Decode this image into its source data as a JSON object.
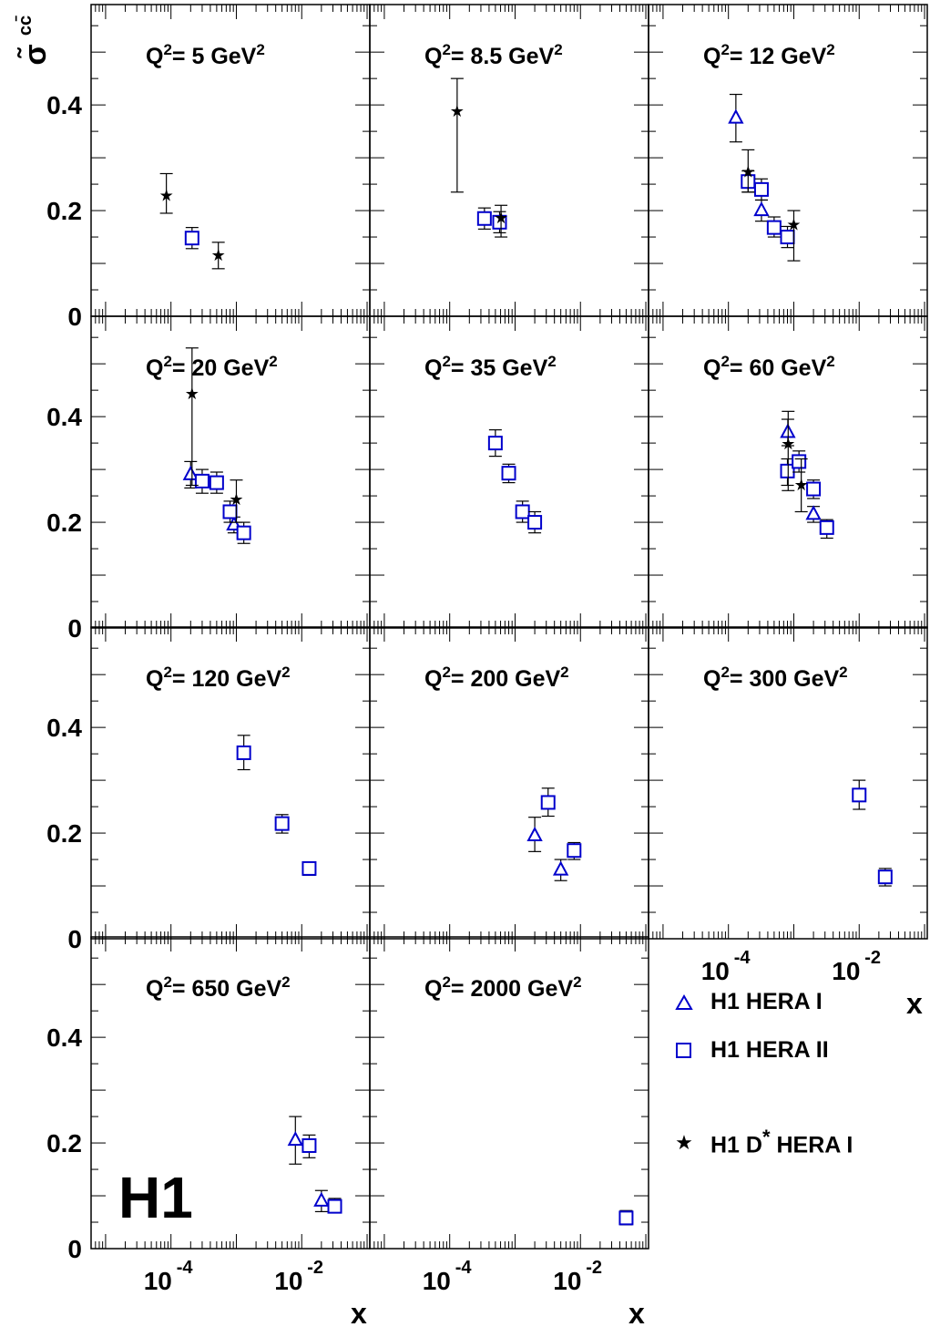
{
  "figure": {
    "y_label": "σ̃",
    "y_label_sup": "cc̄",
    "x_label": "x",
    "logo": "H1",
    "ytick_labels": [
      "0",
      "0.2",
      "0.4"
    ],
    "xtick_labels": [
      {
        "base": "10",
        "exp": "-4"
      },
      {
        "base": "10",
        "exp": "-2"
      }
    ]
  },
  "legend": {
    "items": [
      {
        "marker": "triangle",
        "label": "H1 HERA I",
        "color": "#0000cc"
      },
      {
        "marker": "square",
        "label": "H1 HERA II",
        "color": "#0000cc"
      },
      {
        "marker": "star",
        "label": "H1 D",
        "label_sup": "*",
        "label_tail": " HERA I",
        "color": "#000000"
      }
    ]
  },
  "chart_data": [
    {
      "type": "scatter",
      "title_prefix": "Q",
      "title_value": "= 5 GeV",
      "xscale": "log",
      "xlim": [
        6e-06,
        0.11
      ],
      "ylim": [
        0,
        0.59
      ],
      "grid": false,
      "series": [
        {
          "name": "H1 HERA II",
          "points": [
            {
              "x": 0.00021,
              "y": 0.148,
              "lo": 0.128,
              "hi": 0.168
            }
          ]
        },
        {
          "name": "H1 D* HERA I",
          "points": [
            {
              "x": 8.5e-05,
              "y": 0.23,
              "lo": 0.195,
              "hi": 0.27
            },
            {
              "x": 0.00053,
              "y": 0.117,
              "lo": 0.09,
              "hi": 0.14
            }
          ]
        }
      ]
    },
    {
      "type": "scatter",
      "title_prefix": "Q",
      "title_value": "= 8.5 GeV",
      "xscale": "log",
      "xlim": [
        6e-06,
        0.11
      ],
      "ylim": [
        0,
        0.59
      ],
      "grid": false,
      "series": [
        {
          "name": "H1 HERA II",
          "points": [
            {
              "x": 0.00034,
              "y": 0.185,
              "lo": 0.165,
              "hi": 0.205
            },
            {
              "x": 0.00058,
              "y": 0.178,
              "lo": 0.158,
              "hi": 0.198
            }
          ]
        },
        {
          "name": "H1 D* HERA I",
          "points": [
            {
              "x": 0.00013,
              "y": 0.39,
              "lo": 0.235,
              "hi": 0.45
            },
            {
              "x": 0.00061,
              "y": 0.188,
              "lo": 0.15,
              "hi": 0.21
            }
          ]
        }
      ]
    },
    {
      "type": "scatter",
      "title_prefix": "Q",
      "title_value": "= 12 GeV",
      "xscale": "log",
      "xlim": [
        6e-06,
        0.11
      ],
      "ylim": [
        0,
        0.59
      ],
      "grid": false,
      "series": [
        {
          "name": "H1 HERA I",
          "points": [
            {
              "x": 0.00013,
              "y": 0.375,
              "lo": 0.33,
              "hi": 0.42
            },
            {
              "x": 0.00032,
              "y": 0.2,
              "lo": 0.18,
              "hi": 0.22
            }
          ]
        },
        {
          "name": "H1 HERA II",
          "points": [
            {
              "x": 0.0002,
              "y": 0.255,
              "lo": 0.235,
              "hi": 0.275
            },
            {
              "x": 0.00032,
              "y": 0.24,
              "lo": 0.22,
              "hi": 0.26
            },
            {
              "x": 0.0005,
              "y": 0.168,
              "lo": 0.15,
              "hi": 0.188
            },
            {
              "x": 0.0008,
              "y": 0.15,
              "lo": 0.13,
              "hi": 0.17
            }
          ]
        },
        {
          "name": "H1 D* HERA I",
          "points": [
            {
              "x": 0.0002,
              "y": 0.275,
              "lo": 0.235,
              "hi": 0.315
            },
            {
              "x": 0.001,
              "y": 0.175,
              "lo": 0.105,
              "hi": 0.2
            }
          ]
        }
      ]
    },
    {
      "type": "scatter",
      "title_prefix": "Q",
      "title_value": "= 20 GeV",
      "xscale": "log",
      "xlim": [
        6e-06,
        0.11
      ],
      "ylim": [
        0,
        0.59
      ],
      "grid": false,
      "series": [
        {
          "name": "H1 HERA I",
          "points": [
            {
              "x": 0.0002,
              "y": 0.29,
              "lo": 0.265,
              "hi": 0.315
            },
            {
              "x": 0.00092,
              "y": 0.195,
              "lo": 0.18,
              "hi": 0.21
            }
          ]
        },
        {
          "name": "H1 HERA II",
          "points": [
            {
              "x": 0.0003,
              "y": 0.278,
              "lo": 0.255,
              "hi": 0.3
            },
            {
              "x": 0.0005,
              "y": 0.275,
              "lo": 0.255,
              "hi": 0.295
            },
            {
              "x": 0.0008,
              "y": 0.22,
              "lo": 0.2,
              "hi": 0.24
            },
            {
              "x": 0.0013,
              "y": 0.18,
              "lo": 0.16,
              "hi": 0.2
            }
          ]
        },
        {
          "name": "H1 D* HERA I",
          "points": [
            {
              "x": 0.00021,
              "y": 0.445,
              "lo": 0.27,
              "hi": 0.53
            },
            {
              "x": 0.001,
              "y": 0.245,
              "lo": 0.2,
              "hi": 0.28
            }
          ]
        }
      ]
    },
    {
      "type": "scatter",
      "title_prefix": "Q",
      "title_value": "= 35 GeV",
      "xscale": "log",
      "xlim": [
        6e-06,
        0.11
      ],
      "ylim": [
        0,
        0.59
      ],
      "grid": false,
      "series": [
        {
          "name": "H1 HERA II",
          "points": [
            {
              "x": 0.0005,
              "y": 0.35,
              "lo": 0.325,
              "hi": 0.375
            },
            {
              "x": 0.0008,
              "y": 0.293,
              "lo": 0.275,
              "hi": 0.31
            },
            {
              "x": 0.0013,
              "y": 0.22,
              "lo": 0.2,
              "hi": 0.24
            },
            {
              "x": 0.002,
              "y": 0.2,
              "lo": 0.18,
              "hi": 0.22
            }
          ]
        }
      ]
    },
    {
      "type": "scatter",
      "title_prefix": "Q",
      "title_value": "= 60 GeV",
      "xscale": "log",
      "xlim": [
        6e-06,
        0.11
      ],
      "ylim": [
        0,
        0.59
      ],
      "grid": false,
      "series": [
        {
          "name": "H1 HERA I",
          "points": [
            {
              "x": 0.00081,
              "y": 0.37,
              "lo": 0.345,
              "hi": 0.395
            },
            {
              "x": 0.002,
              "y": 0.215,
              "lo": 0.2,
              "hi": 0.23
            }
          ]
        },
        {
          "name": "H1 HERA II",
          "points": [
            {
              "x": 0.0008,
              "y": 0.297,
              "lo": 0.27,
              "hi": 0.32
            },
            {
              "x": 0.0012,
              "y": 0.315,
              "lo": 0.295,
              "hi": 0.335
            },
            {
              "x": 0.002,
              "y": 0.263,
              "lo": 0.245,
              "hi": 0.28
            },
            {
              "x": 0.0032,
              "y": 0.19,
              "lo": 0.17,
              "hi": 0.205
            }
          ]
        },
        {
          "name": "H1 D* HERA I",
          "points": [
            {
              "x": 0.00082,
              "y": 0.35,
              "lo": 0.26,
              "hi": 0.41
            },
            {
              "x": 0.0013,
              "y": 0.273,
              "lo": 0.22,
              "hi": 0.32
            }
          ]
        }
      ]
    },
    {
      "type": "scatter",
      "title_prefix": "Q",
      "title_value": "= 120 GeV",
      "xscale": "log",
      "xlim": [
        6e-06,
        0.11
      ],
      "ylim": [
        0,
        0.59
      ],
      "grid": false,
      "series": [
        {
          "name": "H1 HERA II",
          "points": [
            {
              "x": 0.0013,
              "y": 0.352,
              "lo": 0.32,
              "hi": 0.385
            },
            {
              "x": 0.005,
              "y": 0.218,
              "lo": 0.2,
              "hi": 0.235
            },
            {
              "x": 0.013,
              "y": 0.133,
              "lo": 0.12,
              "hi": 0.145
            }
          ]
        }
      ]
    },
    {
      "type": "scatter",
      "title_prefix": "Q",
      "title_value": "= 200 GeV",
      "xscale": "log",
      "xlim": [
        6e-06,
        0.11
      ],
      "ylim": [
        0,
        0.59
      ],
      "grid": false,
      "series": [
        {
          "name": "H1 HERA I",
          "points": [
            {
              "x": 0.002,
              "y": 0.195,
              "lo": 0.165,
              "hi": 0.23
            },
            {
              "x": 0.005,
              "y": 0.13,
              "lo": 0.11,
              "hi": 0.15
            }
          ]
        },
        {
          "name": "H1 HERA II",
          "points": [
            {
              "x": 0.0032,
              "y": 0.258,
              "lo": 0.232,
              "hi": 0.285
            },
            {
              "x": 0.008,
              "y": 0.167,
              "lo": 0.15,
              "hi": 0.182
            }
          ]
        }
      ]
    },
    {
      "type": "scatter",
      "title_prefix": "Q",
      "title_value": "= 300 GeV",
      "xscale": "log",
      "xlim": [
        6e-06,
        0.11
      ],
      "ylim": [
        0,
        0.59
      ],
      "grid": false,
      "series": [
        {
          "name": "H1 HERA II",
          "points": [
            {
              "x": 0.01,
              "y": 0.272,
              "lo": 0.245,
              "hi": 0.3
            },
            {
              "x": 0.025,
              "y": 0.117,
              "lo": 0.1,
              "hi": 0.133
            }
          ]
        }
      ]
    },
    {
      "type": "scatter",
      "title_prefix": "Q",
      "title_value": "= 650 GeV",
      "xscale": "log",
      "xlim": [
        6e-06,
        0.11
      ],
      "ylim": [
        0,
        0.59
      ],
      "grid": false,
      "series": [
        {
          "name": "H1 HERA I",
          "points": [
            {
              "x": 0.008,
              "y": 0.205,
              "lo": 0.16,
              "hi": 0.25
            },
            {
              "x": 0.02,
              "y": 0.09,
              "lo": 0.07,
              "hi": 0.11
            }
          ]
        },
        {
          "name": "H1 HERA II",
          "points": [
            {
              "x": 0.013,
              "y": 0.195,
              "lo": 0.172,
              "hi": 0.215
            },
            {
              "x": 0.032,
              "y": 0.08,
              "lo": 0.068,
              "hi": 0.095
            }
          ]
        }
      ]
    },
    {
      "type": "scatter",
      "title_prefix": "Q",
      "title_value": "= 2000 GeV",
      "xscale": "log",
      "xlim": [
        6e-06,
        0.11
      ],
      "ylim": [
        0,
        0.59
      ],
      "grid": false,
      "series": [
        {
          "name": "H1 HERA II",
          "points": [
            {
              "x": 0.05,
              "y": 0.058,
              "lo": 0.045,
              "hi": 0.072
            }
          ]
        }
      ]
    }
  ]
}
